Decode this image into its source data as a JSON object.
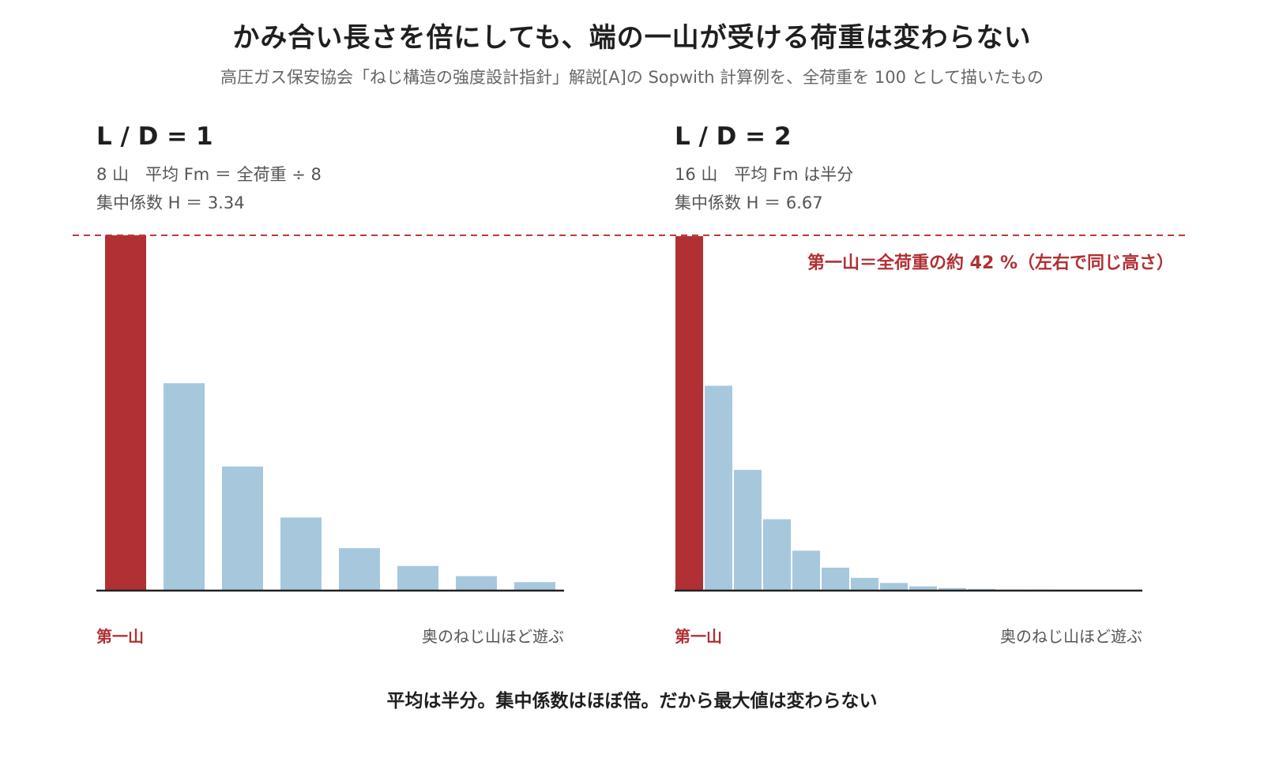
{
  "title": "かみ合い長さを倍にしても、端の一山が受ける荷重は変わらない",
  "subtitle": "高圧ガス保安協会「ねじ構造の強度設計指針」解説[A]の Sopwith 計算例を、全荷重を 100 として描いたもの",
  "conclusion": "平均は半分。集中係数はほぼ倍。だから最大値は変わらない",
  "colors": {
    "first": "#b03034",
    "others": "#a7c8dc",
    "axis": "#222222",
    "ref_line": "#c0393b"
  },
  "chart_data": [
    {
      "type": "bar",
      "title": "L / D = 1",
      "lines": [
        "8 山　平均 Fm ＝ 全荷重 ÷ 8",
        "集中係数 H ＝ 3.34"
      ],
      "first_label": "第一山",
      "far_label": "奥のねじ山ほど遊ぶ",
      "values": [
        41.8,
        24.4,
        14.6,
        8.6,
        5.0,
        2.9,
        1.7,
        1.0
      ],
      "ylim": [
        0,
        41.8
      ]
    },
    {
      "type": "bar",
      "title": "L / D = 2",
      "lines": [
        "16 山　平均 Fm は半分",
        "集中係数 H ＝ 6.67"
      ],
      "first_label": "第一山",
      "far_label": "奥のねじ山ほど遊ぶ",
      "annotation": "第一山＝全荷重の約 42 %（左右で同じ高さ）",
      "values": [
        41.7,
        24.1,
        14.2,
        8.4,
        4.7,
        2.7,
        1.5,
        0.9,
        0.5,
        0.3,
        0.2,
        0.1,
        0.1,
        0.0,
        0.0,
        0.0
      ],
      "ylim": [
        0,
        41.8
      ]
    }
  ]
}
